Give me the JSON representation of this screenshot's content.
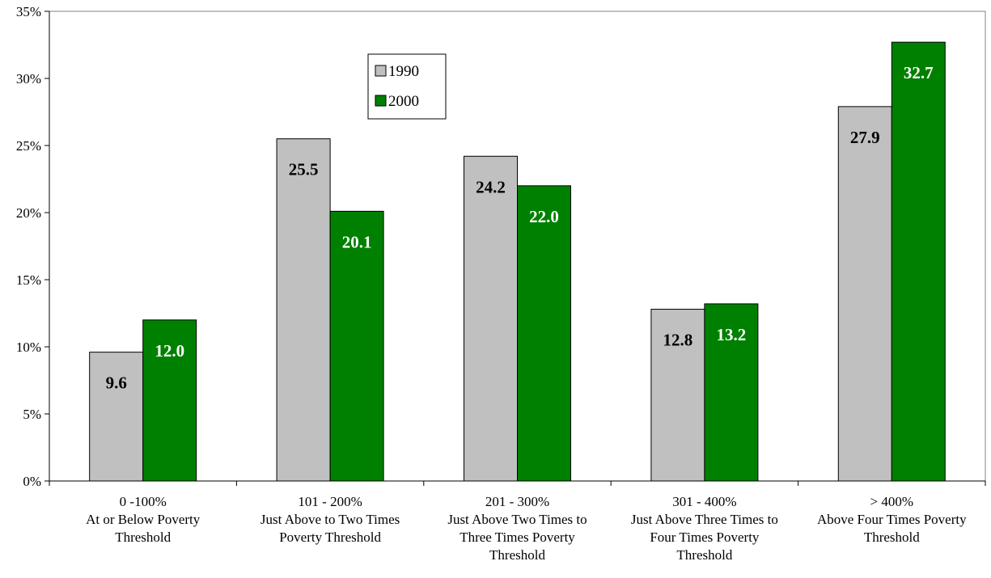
{
  "chart_data": {
    "type": "bar",
    "title": "",
    "xlabel": "",
    "ylabel": "",
    "ylim": [
      0,
      35
    ],
    "yticks": [
      "0%",
      "5%",
      "10%",
      "15%",
      "20%",
      "25%",
      "30%",
      "35%"
    ],
    "categories": [
      [
        "0 -100%",
        "At or Below Poverty",
        "Threshold"
      ],
      [
        "101 - 200%",
        "Just Above to Two Times",
        "Poverty Threshold"
      ],
      [
        "201 - 300%",
        "Just Above Two Times to",
        "Three Times Poverty",
        "Threshold"
      ],
      [
        "301 - 400%",
        "Just Above Three Times to",
        "Four Times Poverty",
        "Threshold"
      ],
      [
        "> 400%",
        "Above Four Times Poverty",
        "Threshold"
      ]
    ],
    "series": [
      {
        "name": "1990",
        "color": "#c0c0c0",
        "label_color": "#000000",
        "values": [
          9.6,
          25.5,
          24.2,
          12.8,
          27.9
        ],
        "labels": [
          "9.6",
          "25.5",
          "24.2",
          "12.8",
          "27.9"
        ]
      },
      {
        "name": "2000",
        "color": "#008000",
        "label_color": "#ffffff",
        "values": [
          12.0,
          20.1,
          22.0,
          13.2,
          32.7
        ],
        "labels": [
          "12.0",
          "20.1",
          "22.0",
          "13.2",
          "32.7"
        ]
      }
    ],
    "grid": false,
    "legend_position": "top-center"
  }
}
